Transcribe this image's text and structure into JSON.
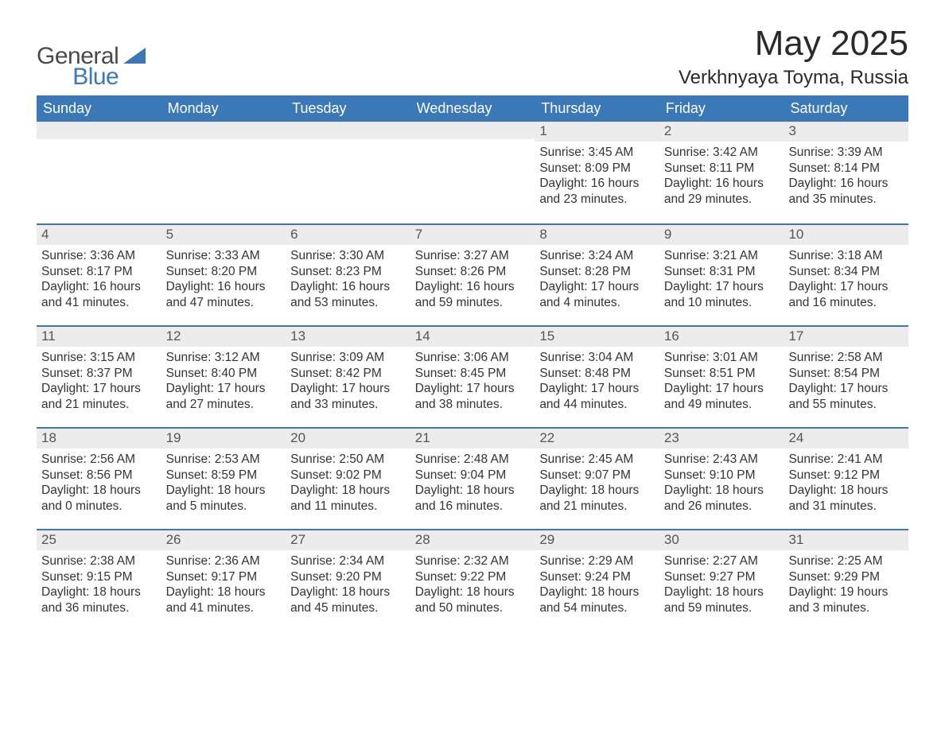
{
  "brand": {
    "word1": "General",
    "word2": "Blue",
    "triangle_color": "#3a78b8"
  },
  "title": "May 2025",
  "location": "Verkhnyaya Toyma, Russia",
  "colors": {
    "header_bg": "#3a78b8",
    "header_text": "#ffffff",
    "daybar_bg": "#ececec",
    "daynum_color": "#555555",
    "body_text": "#333333",
    "row_border": "#3a78b8",
    "page_bg": "#ffffff"
  },
  "fonts": {
    "title_size": 44,
    "location_size": 24,
    "weekday_size": 18,
    "daynum_size": 17,
    "body_size": 15.5
  },
  "weekdays": [
    "Sunday",
    "Monday",
    "Tuesday",
    "Wednesday",
    "Thursday",
    "Friday",
    "Saturday"
  ],
  "weeks": [
    [
      null,
      null,
      null,
      null,
      {
        "n": "1",
        "sunrise": "Sunrise: 3:45 AM",
        "sunset": "Sunset: 8:09 PM",
        "daylight": "Daylight: 16 hours and 23 minutes."
      },
      {
        "n": "2",
        "sunrise": "Sunrise: 3:42 AM",
        "sunset": "Sunset: 8:11 PM",
        "daylight": "Daylight: 16 hours and 29 minutes."
      },
      {
        "n": "3",
        "sunrise": "Sunrise: 3:39 AM",
        "sunset": "Sunset: 8:14 PM",
        "daylight": "Daylight: 16 hours and 35 minutes."
      }
    ],
    [
      {
        "n": "4",
        "sunrise": "Sunrise: 3:36 AM",
        "sunset": "Sunset: 8:17 PM",
        "daylight": "Daylight: 16 hours and 41 minutes."
      },
      {
        "n": "5",
        "sunrise": "Sunrise: 3:33 AM",
        "sunset": "Sunset: 8:20 PM",
        "daylight": "Daylight: 16 hours and 47 minutes."
      },
      {
        "n": "6",
        "sunrise": "Sunrise: 3:30 AM",
        "sunset": "Sunset: 8:23 PM",
        "daylight": "Daylight: 16 hours and 53 minutes."
      },
      {
        "n": "7",
        "sunrise": "Sunrise: 3:27 AM",
        "sunset": "Sunset: 8:26 PM",
        "daylight": "Daylight: 16 hours and 59 minutes."
      },
      {
        "n": "8",
        "sunrise": "Sunrise: 3:24 AM",
        "sunset": "Sunset: 8:28 PM",
        "daylight": "Daylight: 17 hours and 4 minutes."
      },
      {
        "n": "9",
        "sunrise": "Sunrise: 3:21 AM",
        "sunset": "Sunset: 8:31 PM",
        "daylight": "Daylight: 17 hours and 10 minutes."
      },
      {
        "n": "10",
        "sunrise": "Sunrise: 3:18 AM",
        "sunset": "Sunset: 8:34 PM",
        "daylight": "Daylight: 17 hours and 16 minutes."
      }
    ],
    [
      {
        "n": "11",
        "sunrise": "Sunrise: 3:15 AM",
        "sunset": "Sunset: 8:37 PM",
        "daylight": "Daylight: 17 hours and 21 minutes."
      },
      {
        "n": "12",
        "sunrise": "Sunrise: 3:12 AM",
        "sunset": "Sunset: 8:40 PM",
        "daylight": "Daylight: 17 hours and 27 minutes."
      },
      {
        "n": "13",
        "sunrise": "Sunrise: 3:09 AM",
        "sunset": "Sunset: 8:42 PM",
        "daylight": "Daylight: 17 hours and 33 minutes."
      },
      {
        "n": "14",
        "sunrise": "Sunrise: 3:06 AM",
        "sunset": "Sunset: 8:45 PM",
        "daylight": "Daylight: 17 hours and 38 minutes."
      },
      {
        "n": "15",
        "sunrise": "Sunrise: 3:04 AM",
        "sunset": "Sunset: 8:48 PM",
        "daylight": "Daylight: 17 hours and 44 minutes."
      },
      {
        "n": "16",
        "sunrise": "Sunrise: 3:01 AM",
        "sunset": "Sunset: 8:51 PM",
        "daylight": "Daylight: 17 hours and 49 minutes."
      },
      {
        "n": "17",
        "sunrise": "Sunrise: 2:58 AM",
        "sunset": "Sunset: 8:54 PM",
        "daylight": "Daylight: 17 hours and 55 minutes."
      }
    ],
    [
      {
        "n": "18",
        "sunrise": "Sunrise: 2:56 AM",
        "sunset": "Sunset: 8:56 PM",
        "daylight": "Daylight: 18 hours and 0 minutes."
      },
      {
        "n": "19",
        "sunrise": "Sunrise: 2:53 AM",
        "sunset": "Sunset: 8:59 PM",
        "daylight": "Daylight: 18 hours and 5 minutes."
      },
      {
        "n": "20",
        "sunrise": "Sunrise: 2:50 AM",
        "sunset": "Sunset: 9:02 PM",
        "daylight": "Daylight: 18 hours and 11 minutes."
      },
      {
        "n": "21",
        "sunrise": "Sunrise: 2:48 AM",
        "sunset": "Sunset: 9:04 PM",
        "daylight": "Daylight: 18 hours and 16 minutes."
      },
      {
        "n": "22",
        "sunrise": "Sunrise: 2:45 AM",
        "sunset": "Sunset: 9:07 PM",
        "daylight": "Daylight: 18 hours and 21 minutes."
      },
      {
        "n": "23",
        "sunrise": "Sunrise: 2:43 AM",
        "sunset": "Sunset: 9:10 PM",
        "daylight": "Daylight: 18 hours and 26 minutes."
      },
      {
        "n": "24",
        "sunrise": "Sunrise: 2:41 AM",
        "sunset": "Sunset: 9:12 PM",
        "daylight": "Daylight: 18 hours and 31 minutes."
      }
    ],
    [
      {
        "n": "25",
        "sunrise": "Sunrise: 2:38 AM",
        "sunset": "Sunset: 9:15 PM",
        "daylight": "Daylight: 18 hours and 36 minutes."
      },
      {
        "n": "26",
        "sunrise": "Sunrise: 2:36 AM",
        "sunset": "Sunset: 9:17 PM",
        "daylight": "Daylight: 18 hours and 41 minutes."
      },
      {
        "n": "27",
        "sunrise": "Sunrise: 2:34 AM",
        "sunset": "Sunset: 9:20 PM",
        "daylight": "Daylight: 18 hours and 45 minutes."
      },
      {
        "n": "28",
        "sunrise": "Sunrise: 2:32 AM",
        "sunset": "Sunset: 9:22 PM",
        "daylight": "Daylight: 18 hours and 50 minutes."
      },
      {
        "n": "29",
        "sunrise": "Sunrise: 2:29 AM",
        "sunset": "Sunset: 9:24 PM",
        "daylight": "Daylight: 18 hours and 54 minutes."
      },
      {
        "n": "30",
        "sunrise": "Sunrise: 2:27 AM",
        "sunset": "Sunset: 9:27 PM",
        "daylight": "Daylight: 18 hours and 59 minutes."
      },
      {
        "n": "31",
        "sunrise": "Sunrise: 2:25 AM",
        "sunset": "Sunset: 9:29 PM",
        "daylight": "Daylight: 19 hours and 3 minutes."
      }
    ]
  ]
}
